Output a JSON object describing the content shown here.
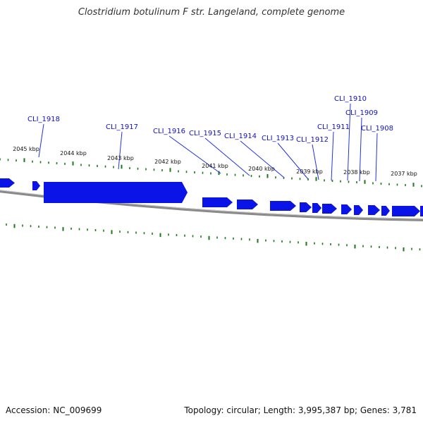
{
  "title": "Clostridium botulinum F str. Langeland, complete genome",
  "footer": {
    "accession": "Accession: NC_009699",
    "summary": "Topology: circular; Length: 3,995,387 bp; Genes: 3,781"
  },
  "colors": {
    "gene": "#0a14e6",
    "gene_label": "#1010cc",
    "label_line": "#2233dd",
    "tick": "#1a7a1a",
    "backbone": "#8a8a8a",
    "kbp_label": "#111111"
  },
  "kbp_labels": [
    "2045 kbp",
    "2044 kbp",
    "2043 kbp",
    "2042 kbp",
    "2041 kbp",
    "2040 kbp",
    "2039 kbp",
    "2038 kbp",
    "2037 kbp"
  ],
  "gene_labels": [
    "CLI_1918",
    "CLI_1917",
    "CLI_1916",
    "CLI_1915",
    "CLI_1914",
    "CLI_1913",
    "CLI_1912",
    "CLI_1911",
    "CLI_1910",
    "CLI_1909",
    "CLI_1908"
  ]
}
